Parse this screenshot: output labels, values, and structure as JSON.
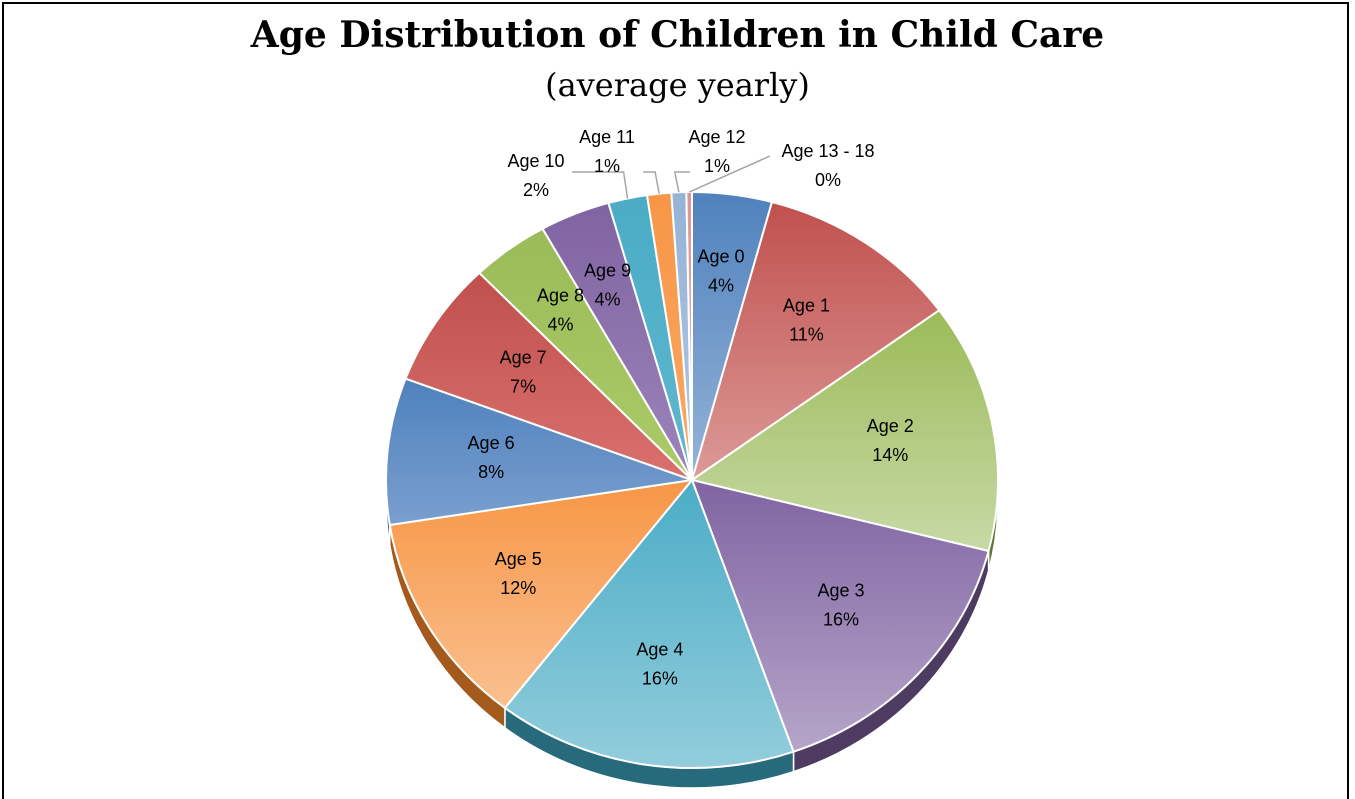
{
  "chart_data": {
    "type": "pie",
    "title": "Age Distribution of Children in Child Care",
    "subtitle": "(average yearly)",
    "slices": [
      {
        "label": "Age 0",
        "value": 4.3,
        "pct_label": "4%",
        "color": "#4f81bd",
        "light": "#95b3d7",
        "dark": "#2c4d75"
      },
      {
        "label": "Age 1",
        "value": 11.0,
        "pct_label": "11%",
        "color": "#c0504d",
        "light": "#dc9a98",
        "dark": "#772c2a"
      },
      {
        "label": "Age 2",
        "value": 14.3,
        "pct_label": "14%",
        "color": "#9bbb59",
        "light": "#c8d9a6",
        "dark": "#5f7530"
      },
      {
        "label": "Age 3",
        "value": 16.0,
        "pct_label": "16%",
        "color": "#8064a2",
        "light": "#b5a5c9",
        "dark": "#4d3b62"
      },
      {
        "label": "Age 4",
        "value": 16.2,
        "pct_label": "16%",
        "color": "#4bacc6",
        "light": "#92cddc",
        "dark": "#276a7c"
      },
      {
        "label": "Age 5",
        "value": 12.3,
        "pct_label": "12%",
        "color": "#f79646",
        "light": "#fac090",
        "dark": "#a35a1c"
      },
      {
        "label": "Age 6",
        "value": 8.4,
        "pct_label": "8%",
        "color": "#4f81bd",
        "light": "#7a9fcf",
        "dark": "#2c4d75"
      },
      {
        "label": "Age 7",
        "value": 7.2,
        "pct_label": "7%",
        "color": "#c0504d",
        "light": "#d9716e",
        "dark": "#772c2a"
      },
      {
        "label": "Age 8",
        "value": 4.2,
        "pct_label": "4%",
        "color": "#9bbb59",
        "light": "#aacb68",
        "dark": "#5f7530"
      },
      {
        "label": "Age 9",
        "value": 3.8,
        "pct_label": "4%",
        "color": "#8064a2",
        "light": "#9c84ba",
        "dark": "#4d3b62"
      },
      {
        "label": "Age 10",
        "value": 2.1,
        "pct_label": "2%",
        "color": "#4bacc6",
        "light": "#5fb7cf",
        "dark": "#276a7c"
      },
      {
        "label": "Age 11",
        "value": 1.3,
        "pct_label": "1%",
        "color": "#f79646",
        "light": "#f9a866",
        "dark": "#a35a1c"
      },
      {
        "label": "Age 12",
        "value": 0.8,
        "pct_label": "1%",
        "color": "#95b3d7",
        "light": "#b0c7e3",
        "dark": "#4f81bd"
      },
      {
        "label": "Age 13 - 18",
        "value": 0.3,
        "pct_label": "0%",
        "color": "#da9694",
        "light": "#e6b9b8",
        "dark": "#c0504d"
      }
    ],
    "legend": "none"
  }
}
